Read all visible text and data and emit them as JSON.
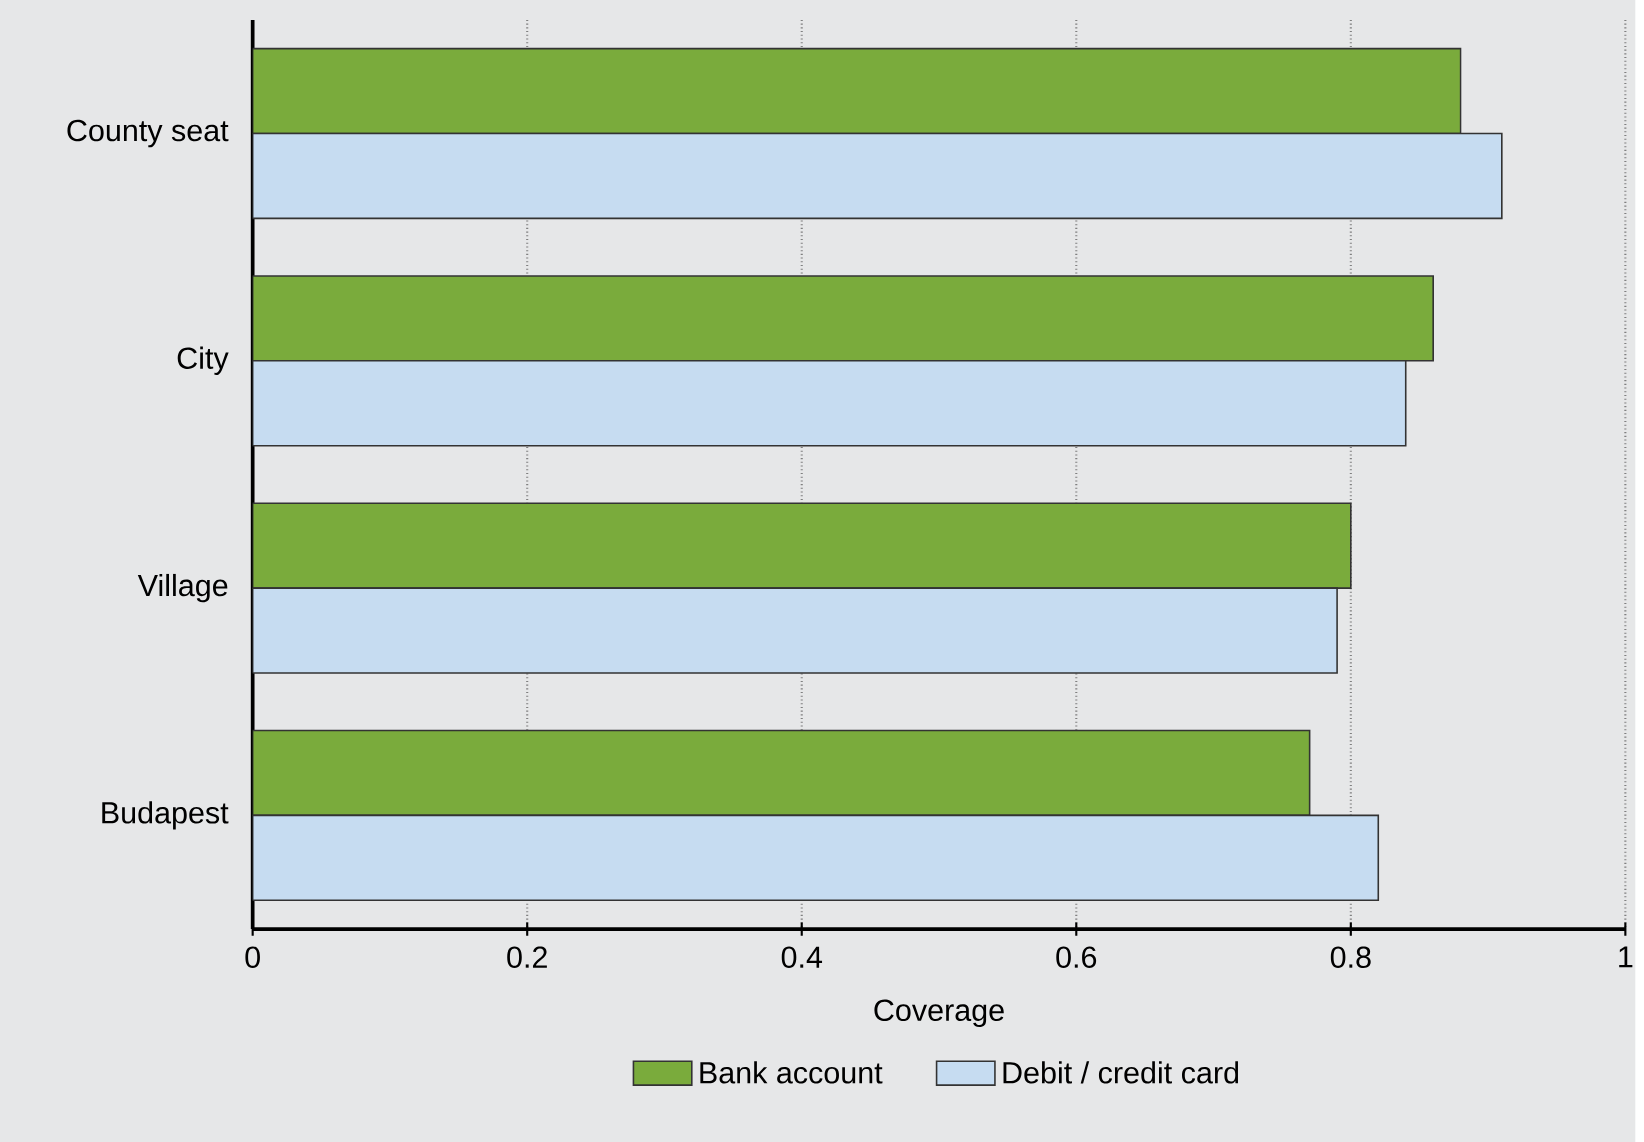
{
  "chart_data": {
    "type": "bar",
    "orientation": "horizontal",
    "xlabel": "Coverage",
    "categories": [
      "County seat",
      "City",
      "Village",
      "Budapest"
    ],
    "series": [
      {
        "name": "Bank account",
        "color": "#7aab3c",
        "values": [
          0.88,
          0.86,
          0.8,
          0.77
        ]
      },
      {
        "name": "Debit / credit card",
        "color": "#c6dcf1",
        "values": [
          0.91,
          0.84,
          0.79,
          0.82
        ]
      }
    ],
    "xlim": [
      0,
      1
    ],
    "xticks": [
      0,
      0.2,
      0.4,
      0.6,
      0.8,
      1
    ],
    "grid": "x",
    "legend": "bottom"
  }
}
